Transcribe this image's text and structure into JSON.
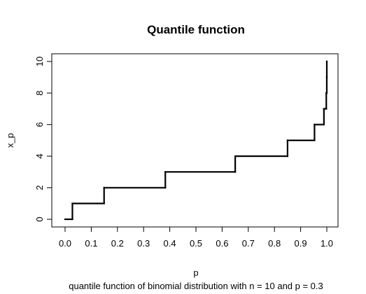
{
  "chart_data": {
    "type": "line",
    "title": "Quantile function",
    "xlabel": "p",
    "ylabel": "x_p",
    "subtitle": "quantile function of binomial distribution with n = 10 and p = 0.3",
    "xlim": [
      0,
      1
    ],
    "ylim": [
      0,
      10
    ],
    "x_ticks": [
      "0.0",
      "0.1",
      "0.2",
      "0.3",
      "0.4",
      "0.5",
      "0.6",
      "0.7",
      "0.8",
      "0.9",
      "1.0"
    ],
    "y_ticks": [
      "0",
      "2",
      "4",
      "6",
      "8",
      "10"
    ],
    "steps": [
      {
        "p_from": 0.0,
        "p_to": 0.028,
        "x": 0
      },
      {
        "p_from": 0.028,
        "p_to": 0.149,
        "x": 1
      },
      {
        "p_from": 0.149,
        "p_to": 0.383,
        "x": 2
      },
      {
        "p_from": 0.383,
        "p_to": 0.65,
        "x": 3
      },
      {
        "p_from": 0.65,
        "p_to": 0.85,
        "x": 4
      },
      {
        "p_from": 0.85,
        "p_to": 0.953,
        "x": 5
      },
      {
        "p_from": 0.953,
        "p_to": 0.989,
        "x": 6
      },
      {
        "p_from": 0.989,
        "p_to": 0.998,
        "x": 7
      },
      {
        "p_from": 0.998,
        "p_to": 0.9999,
        "x": 8
      },
      {
        "p_from": 0.9999,
        "p_to": 1.0,
        "x": 9
      },
      {
        "p_from": 1.0,
        "p_to": 1.0,
        "x": 10
      }
    ],
    "line_color": "#000000",
    "grid": false
  }
}
